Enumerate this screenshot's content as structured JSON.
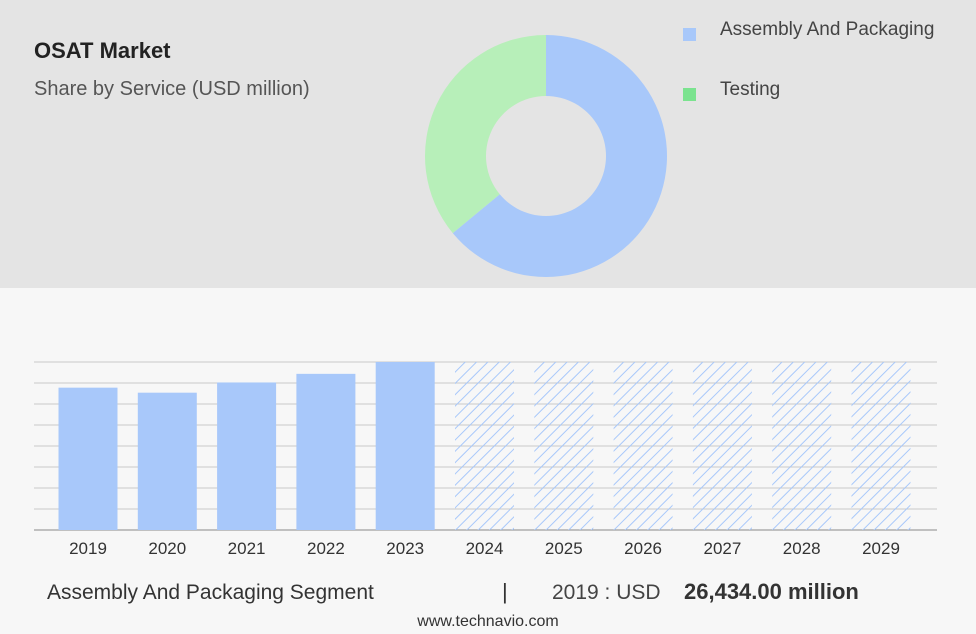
{
  "header": {
    "title": "OSAT Market",
    "subtitle": "Share by Service (USD million)"
  },
  "legend": {
    "items": [
      {
        "label": "Assembly And Packaging",
        "color": "#a8c8fa"
      },
      {
        "label": "Testing",
        "color": "#7be38f"
      }
    ]
  },
  "footer": {
    "segment_label": "Assembly And Packaging Segment",
    "divider": "|",
    "year_text": "2019 : USD",
    "value_text": "26,434.00 million",
    "source": "www.technavio.com"
  },
  "colors": {
    "assembly": "#a8c8fa",
    "testing": "#b7efb9",
    "forecast_hatch": "#a8c8fa",
    "grid": "#c8c8c8"
  },
  "chart_data": [
    {
      "type": "pie",
      "subtype": "donut",
      "title": "Share by Service (USD million)",
      "slices": [
        {
          "label": "Assembly And Packaging",
          "value": 64
        },
        {
          "label": "Testing",
          "value": 36
        }
      ]
    },
    {
      "type": "bar",
      "categories": [
        "2019",
        "2020",
        "2021",
        "2022",
        "2023",
        "2024",
        "2025",
        "2026",
        "2027",
        "2028",
        "2029"
      ],
      "values": [
        26434,
        25500,
        27400,
        29000,
        31200,
        31200,
        31200,
        31200,
        31200,
        31200,
        31200
      ],
      "forecast_from": "2024",
      "ylim": [
        0,
        31200
      ],
      "grid": true,
      "xlabel": "",
      "ylabel": ""
    }
  ]
}
